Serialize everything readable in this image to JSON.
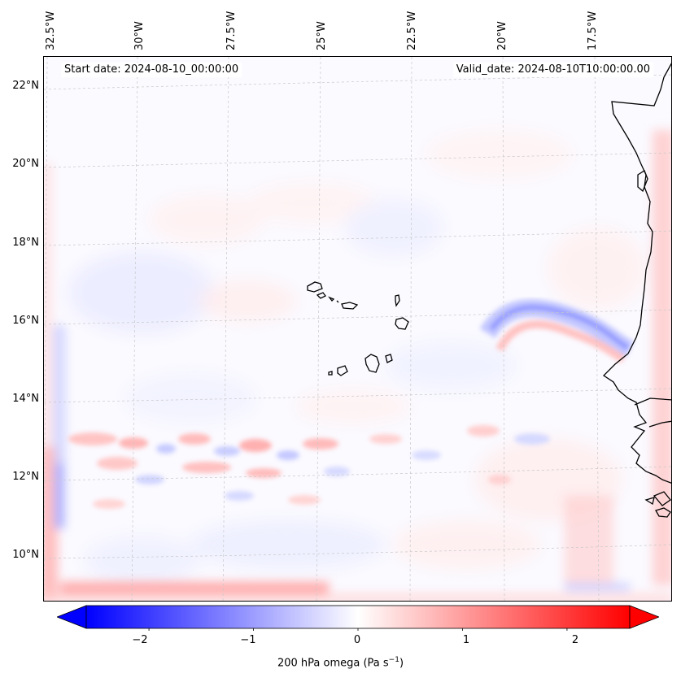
{
  "map": {
    "start_date": "Start date: 2024-08-10_00:00:00",
    "valid_date": "Valid_date: 2024-08-10T10:00:00.00",
    "longitude_labels": [
      "32.5°W",
      "30°W",
      "27.5°W",
      "25°W",
      "22.5°W",
      "20°W",
      "17.5°W"
    ],
    "latitude_labels": [
      "22°N",
      "20°N",
      "18°N",
      "16°N",
      "14°N",
      "12°N",
      "10°N"
    ],
    "region": "Cape Verde / West African coast",
    "field": "200 hPa omega"
  },
  "colorbar": {
    "ticks": [
      "−2",
      "−1",
      "0",
      "1",
      "2"
    ],
    "tick_values": [
      -2,
      -1,
      0,
      1,
      2
    ],
    "range": [
      -2.6,
      2.6
    ],
    "label_prefix": "200 hPa omega (Pa s",
    "label_exp": "−1",
    "label_suffix": ")",
    "colors": {
      "negative": "#0000ff",
      "zero": "#ffffff",
      "positive": "#ff0000"
    }
  }
}
